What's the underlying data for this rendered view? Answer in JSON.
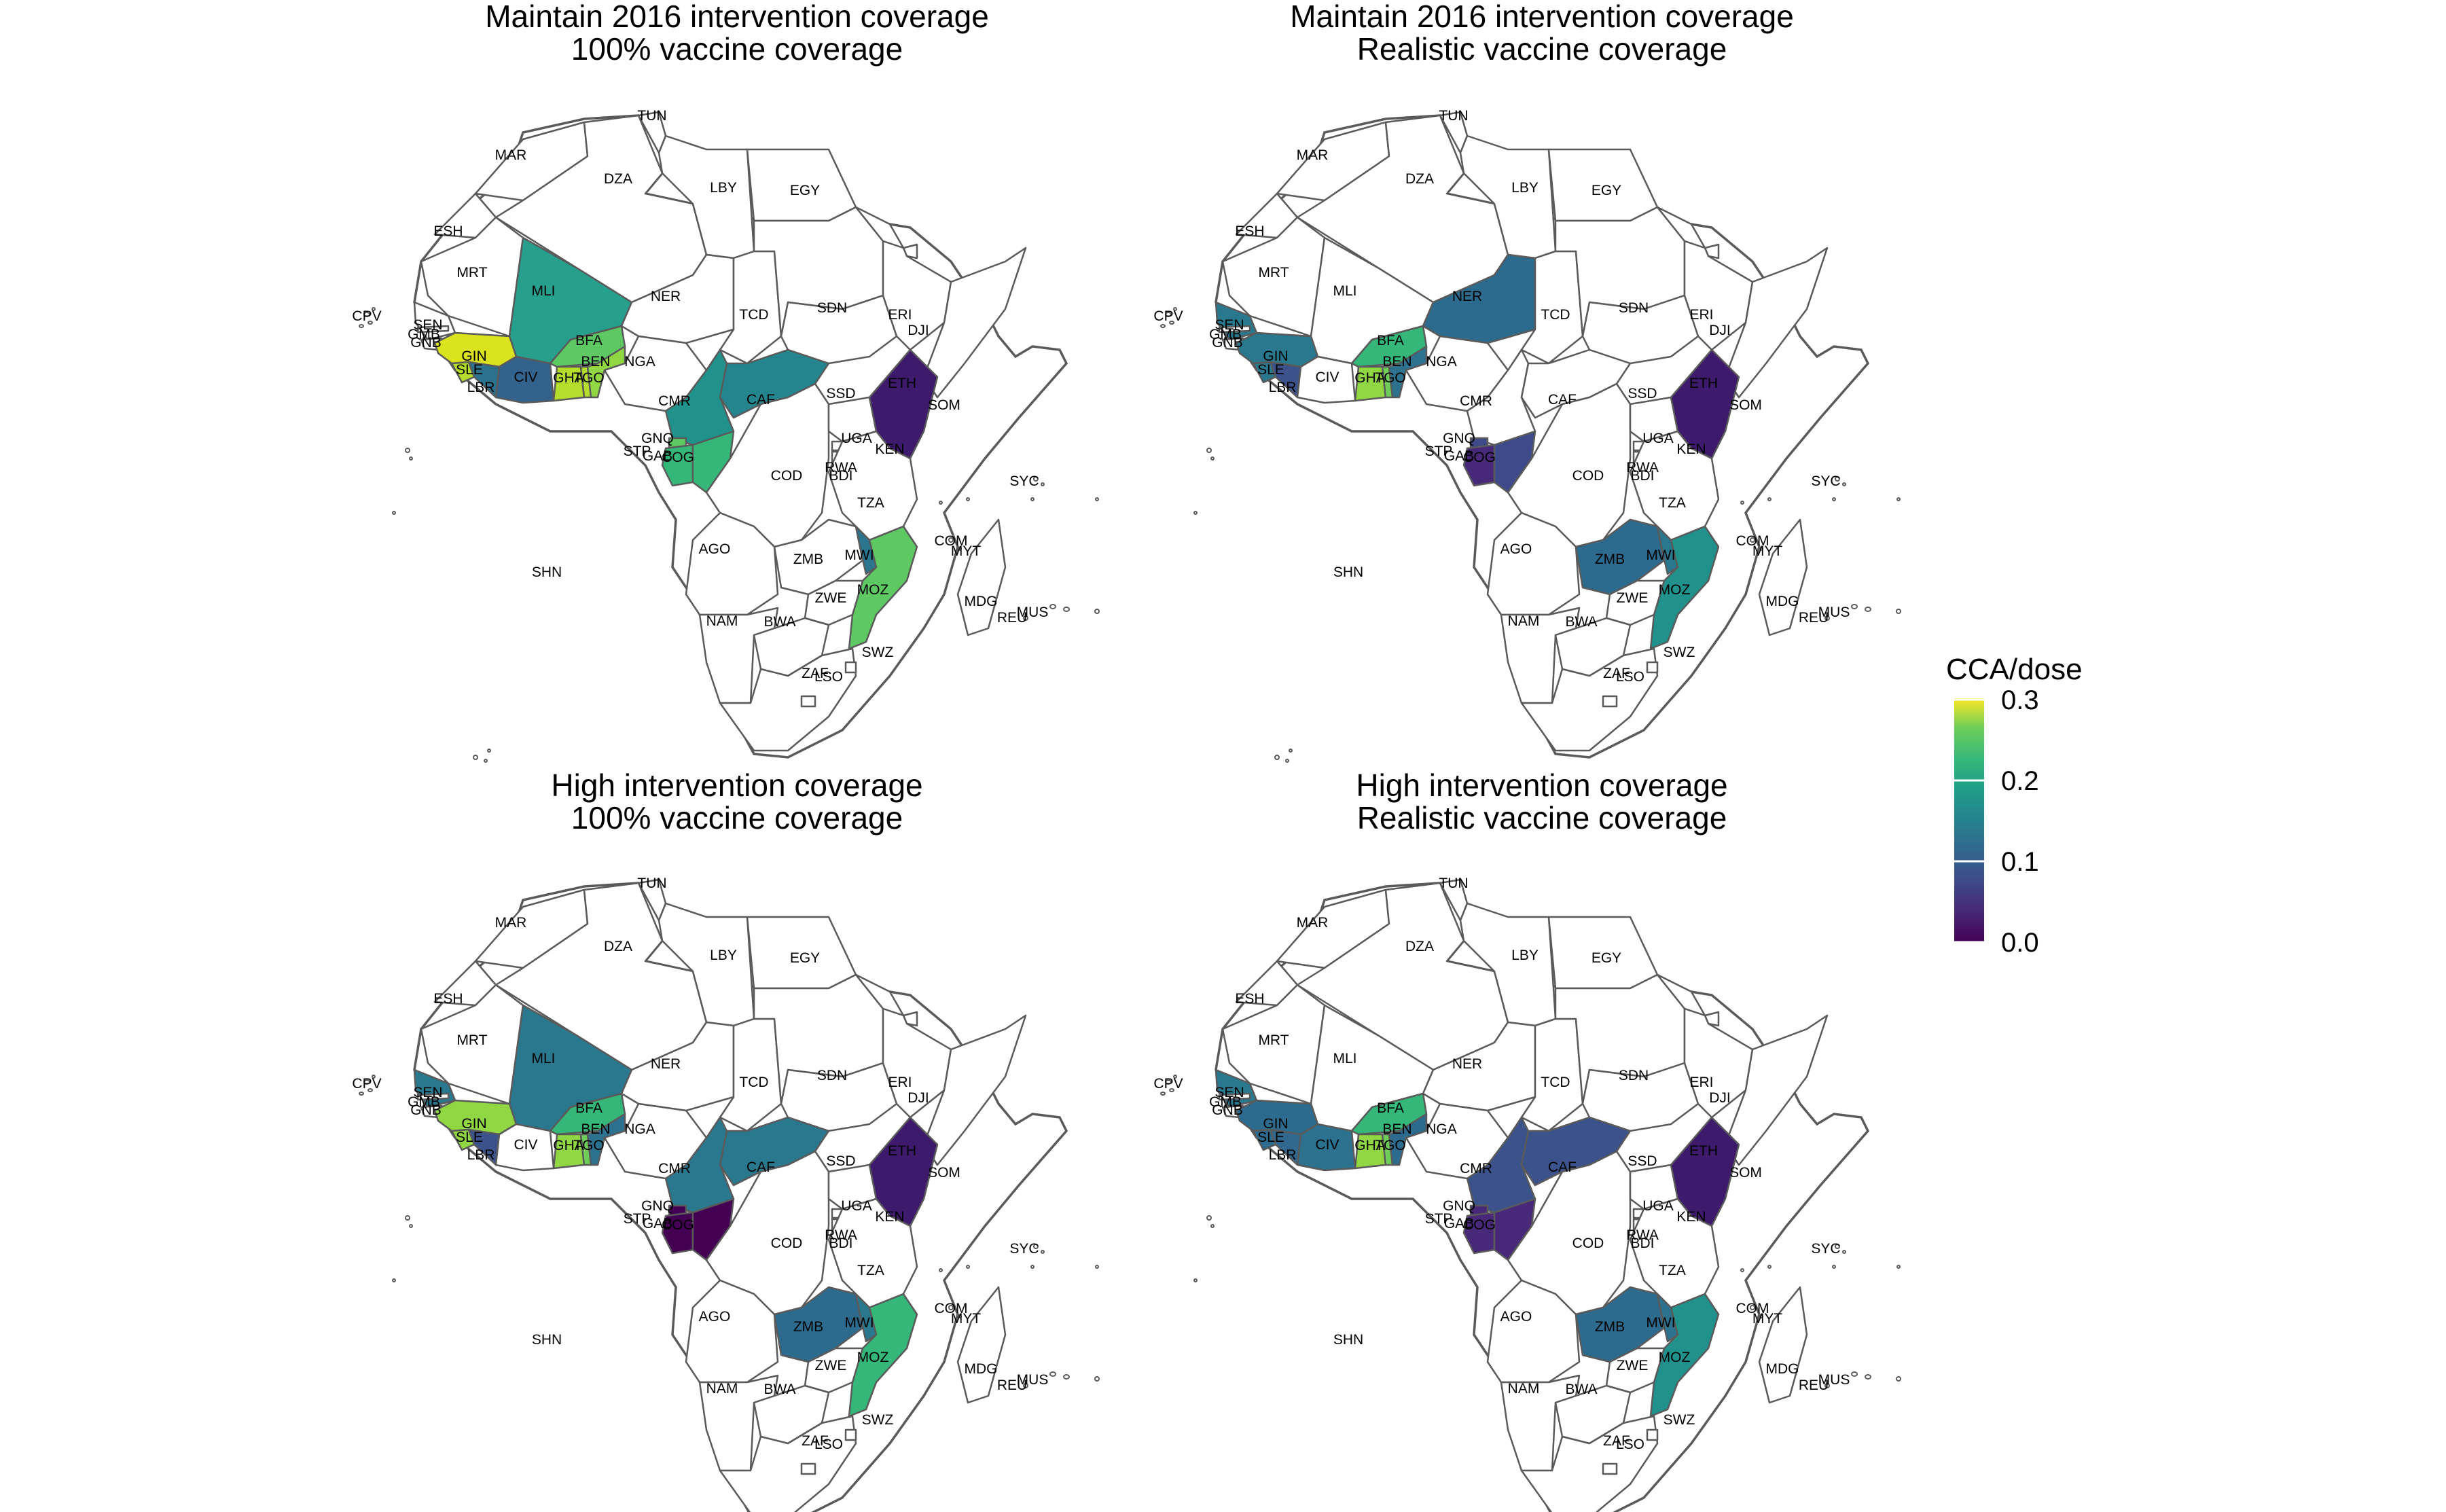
{
  "panels": [
    {
      "title_line1": "Maintain 2016 intervention coverage",
      "title_line2": "100% vaccine coverage",
      "fills": {
        "MLI": "#26a08d",
        "GIN": "#dae31d",
        "SLE": "#b5dd2b",
        "LBR": "#2c718e",
        "CIV": "#33628d",
        "BFA": "#5ec962",
        "GHA": "#b5dd2b",
        "BEN": "#90d743",
        "TGO": "#b5dd2b",
        "CAF": "#25858e",
        "CMR": "#21918c",
        "COG": "#35b779",
        "GNQ": "#5ec962",
        "GAB": "#35b779",
        "KEN": "#3d1a6b",
        "MWI": "#2b758e",
        "MOZ": "#5ec962",
        "ZMB": "#ffffff",
        "SEN": "#ffffff"
      }
    },
    {
      "title_line1": "Maintain 2016 intervention coverage",
      "title_line2": "Realistic vaccine coverage",
      "fills": {
        "MLI": "#ffffff",
        "NER": "#2c6b8e",
        "GIN": "#2a788e",
        "SLE": "#2a788e",
        "LBR": "#3b528b",
        "CIV": "#ffffff",
        "BFA": "#35b779",
        "GHA": "#90d743",
        "BEN": "#2c718e",
        "TGO": "#6ece58",
        "GNQ": "#3e4a89",
        "GAB": "#482878",
        "COG": "#3e4a89",
        "KEN": "#3d1a6b",
        "ZMB": "#2c6b8e",
        "MWI": "#2a788e",
        "MOZ": "#21918c",
        "SEN": "#2a788e",
        "CAF": "#ffffff",
        "CMR": "#ffffff"
      }
    },
    {
      "title_line1": "High intervention coverage",
      "title_line2": "100% vaccine coverage",
      "fills": {
        "MLI": "#2a788e",
        "GIN": "#90d743",
        "SLE": "#90d743",
        "LBR": "#3b528b",
        "CIV": "#ffffff",
        "BFA": "#35b779",
        "GHA": "#90d743",
        "BEN": "#2c718e",
        "TGO": "#6ece58",
        "CAF": "#2a788e",
        "CMR": "#2a788e",
        "GNQ": "#440154",
        "GAB": "#440154",
        "COG": "#440154",
        "KEN": "#3d1a6b",
        "ZMB": "#2c6b8e",
        "MWI": "#2a788e",
        "MOZ": "#35b779",
        "SEN": "#2a788e"
      }
    },
    {
      "title_line1": "High intervention coverage",
      "title_line2": "Realistic vaccine coverage",
      "fills": {
        "MLI": "#ffffff",
        "NER": "#ffffff",
        "GIN": "#2c6b8e",
        "SLE": "#2c6b8e",
        "LBR": "#31688e",
        "CIV": "#2c718e",
        "BFA": "#35b779",
        "GHA": "#90d743",
        "BEN": "#2c6b8e",
        "TGO": "#6ece58",
        "CAF": "#3b528b",
        "CMR": "#3b528b",
        "GNQ": "#482878",
        "GAB": "#482878",
        "COG": "#482878",
        "KEN": "#3d1a6b",
        "ZMB": "#2c6b8e",
        "MWI": "#2c718e",
        "MOZ": "#21918c",
        "SEN": "#2a788e"
      }
    }
  ],
  "country_labels": [
    "TUN",
    "MAR",
    "DZA",
    "LBY",
    "EGY",
    "ESH",
    "MRT",
    "MLI",
    "NER",
    "TCD",
    "SDN",
    "ERI",
    "DJI",
    "CPV",
    "SEN",
    "GMB",
    "GNB",
    "BFA",
    "GIN",
    "SLE",
    "LBR",
    "CIV",
    "GHA",
    "TGO",
    "BEN",
    "NGA",
    "CMR",
    "CAF",
    "SSD",
    "ETH",
    "SOM",
    "GNQ",
    "STP",
    "GAB",
    "COG",
    "UGA",
    "KEN",
    "RWA",
    "BDI",
    "COD",
    "TZA",
    "SYC",
    "COM",
    "MYT",
    "AGO",
    "ZMB",
    "MWI",
    "MOZ",
    "MDG",
    "MUS",
    "REU",
    "ZWE",
    "NAM",
    "BWA",
    "SWZ",
    "ZAF",
    "LSO",
    "SHN"
  ],
  "legend": {
    "title": "CCA/dose",
    "ticks": [
      "0.3",
      "0.2",
      "0.1",
      "0.0"
    ],
    "color_low": "#440154",
    "color_high": "#fde725"
  },
  "chart_data": {
    "type": "choropleth",
    "value_name": "CCA/dose",
    "value_range": [
      0,
      0.3
    ],
    "colormap": "viridis",
    "panels": [
      {
        "title": "Maintain 2016 intervention coverage / 100% vaccine coverage",
        "values": {
          "MLI": 0.15,
          "GIN": 0.28,
          "SLE": 0.25,
          "LBR": 0.09,
          "CIV": 0.08,
          "BFA": 0.19,
          "GHA": 0.25,
          "BEN": 0.22,
          "TGO": 0.25,
          "CAF": 0.13,
          "CMR": 0.14,
          "COG": 0.17,
          "GNQ": 0.19,
          "GAB": 0.17,
          "KEN": 0.02,
          "MWI": 0.1,
          "MOZ": 0.19
        }
      },
      {
        "title": "Maintain 2016 intervention coverage / Realistic vaccine coverage",
        "values": {
          "NER": 0.09,
          "GIN": 0.1,
          "SLE": 0.1,
          "LBR": 0.06,
          "BFA": 0.17,
          "GHA": 0.22,
          "BEN": 0.09,
          "TGO": 0.2,
          "GNQ": 0.05,
          "GAB": 0.03,
          "COG": 0.05,
          "KEN": 0.02,
          "ZMB": 0.09,
          "MWI": 0.1,
          "MOZ": 0.14,
          "SEN": 0.1
        }
      },
      {
        "title": "High intervention coverage / 100% vaccine coverage",
        "values": {
          "MLI": 0.1,
          "GIN": 0.22,
          "SLE": 0.22,
          "LBR": 0.06,
          "BFA": 0.17,
          "GHA": 0.22,
          "BEN": 0.09,
          "TGO": 0.2,
          "CAF": 0.1,
          "CMR": 0.1,
          "GNQ": 0.0,
          "GAB": 0.0,
          "COG": 0.0,
          "KEN": 0.02,
          "ZMB": 0.09,
          "MWI": 0.1,
          "MOZ": 0.17,
          "SEN": 0.1
        }
      },
      {
        "title": "High intervention coverage / Realistic vaccine coverage",
        "values": {
          "GIN": 0.09,
          "SLE": 0.09,
          "LBR": 0.08,
          "CIV": 0.09,
          "BFA": 0.17,
          "GHA": 0.22,
          "BEN": 0.09,
          "TGO": 0.2,
          "CAF": 0.06,
          "CMR": 0.06,
          "GNQ": 0.03,
          "GAB": 0.03,
          "COG": 0.03,
          "KEN": 0.02,
          "ZMB": 0.09,
          "MWI": 0.09,
          "MOZ": 0.14,
          "SEN": 0.1
        }
      }
    ]
  }
}
